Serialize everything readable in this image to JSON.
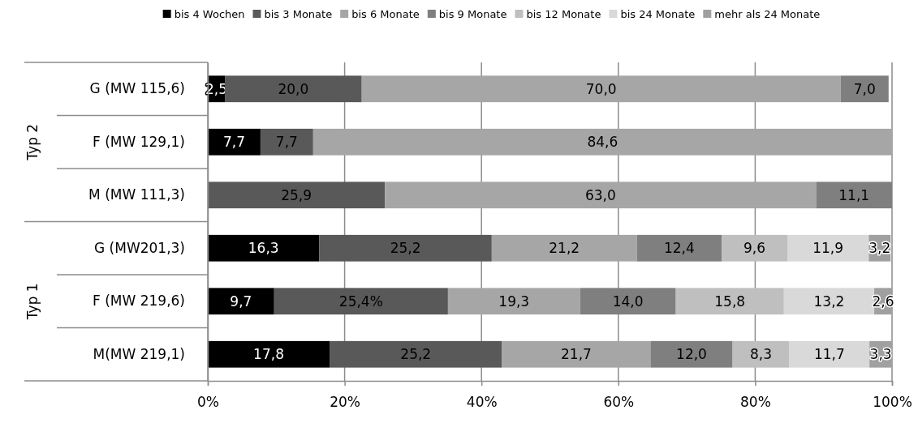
{
  "chart_data": {
    "type": "bar",
    "orientation": "horizontal",
    "stacked": true,
    "categories": [
      "G (MW 115,6)",
      "F (MW 129,1)",
      "M (MW 111,3)",
      "G (MW201,3)",
      "F (MW 219,6)",
      "M(MW 219,1)"
    ],
    "series": [
      {
        "name": "bis 4 Wochen",
        "color": "#000000",
        "values": [
          2.5,
          7.7,
          null,
          16.3,
          9.7,
          17.8
        ],
        "value_labels": [
          "2,5",
          "7,7",
          null,
          "16,3",
          "9,7",
          "17,8"
        ]
      },
      {
        "name": "bis 3 Monate",
        "color": "#595959",
        "values": [
          20.0,
          7.7,
          25.9,
          25.2,
          25.4,
          25.2
        ],
        "value_labels": [
          "20,0",
          "7,7",
          "25,9",
          "25,2",
          "25,4%",
          "25,2"
        ]
      },
      {
        "name": "bis 6 Monate",
        "color": "#a6a6a6",
        "values": [
          70.0,
          84.6,
          63.0,
          21.2,
          19.3,
          21.7
        ],
        "value_labels": [
          "70,0",
          "84,6",
          "63,0",
          "21,2",
          "19,3",
          "21,7"
        ]
      },
      {
        "name": "bis 9 Monate",
        "color": "#7f7f7f",
        "values": [
          7.0,
          null,
          11.1,
          12.4,
          14.0,
          12.0
        ],
        "value_labels": [
          "7,0",
          null,
          "11,1",
          "12,4",
          "14,0",
          "12,0"
        ]
      },
      {
        "name": "bis 12 Monate",
        "color": "#bfbfbf",
        "values": [
          null,
          null,
          null,
          9.6,
          15.8,
          8.3
        ],
        "value_labels": [
          null,
          null,
          null,
          "9,6",
          "15,8",
          "8,3"
        ]
      },
      {
        "name": "bis 24 Monate",
        "color": "#d9d9d9",
        "values": [
          null,
          null,
          null,
          11.9,
          13.2,
          11.7
        ],
        "value_labels": [
          null,
          null,
          null,
          "11,9",
          "13,2",
          "11,7"
        ]
      },
      {
        "name": "mehr als 24 Monate",
        "color": "#a0a0a0",
        "values": [
          null,
          null,
          null,
          3.2,
          2.6,
          3.3
        ],
        "value_labels": [
          null,
          null,
          null,
          "3,2",
          "2,6",
          "3,3"
        ]
      }
    ],
    "xlim": [
      0,
      100
    ],
    "xticks": [
      {
        "value": 0,
        "label": "0%"
      },
      {
        "value": 20,
        "label": "20%"
      },
      {
        "value": 40,
        "label": "40%"
      },
      {
        "value": 60,
        "label": "60%"
      },
      {
        "value": 80,
        "label": "80%"
      },
      {
        "value": 100,
        "label": "100%"
      }
    ],
    "grid": "x",
    "legend": "top",
    "annotations": [
      "Typ 2",
      "Typ 1"
    ]
  }
}
